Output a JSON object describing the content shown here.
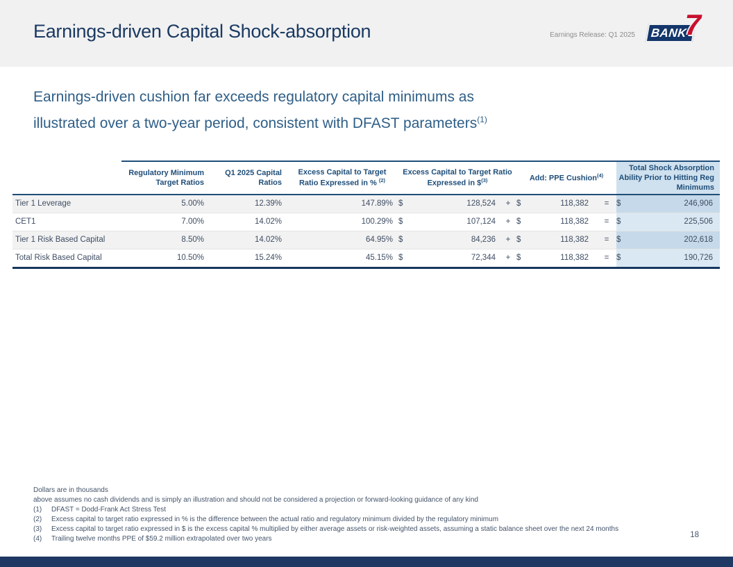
{
  "slide": {
    "title": "Earnings-driven Capital Shock-absorption",
    "release_label": "Earnings Release: Q1 2025",
    "page_number": "18"
  },
  "logo": {
    "word": "BANK",
    "digit": "7"
  },
  "subtitle": {
    "line1": "Earnings-driven cushion far exceeds regulatory capital minimums as",
    "line2": "illustrated over a two-year period, consistent with DFAST parameters",
    "sup": "(1)"
  },
  "table": {
    "headers": {
      "reg_min": "Regulatory Minimum Target Ratios",
      "q1": "Q1 2025 Capital Ratios",
      "excess_pct": "Excess Capital to Target Ratio Expressed in %",
      "excess_pct_sup": "(2)",
      "excess_usd": "Excess Capital to Target Ratio Expressed in $",
      "excess_usd_sup": "(3)",
      "ppe": "Add: PPE Cushion",
      "ppe_sup": "(4)",
      "total": "Total Shock Absorption Ability Prior to Hitting Reg Minimums"
    },
    "symbols": {
      "dollar": "$",
      "plus": "+",
      "equals": "="
    },
    "rows": [
      {
        "label": "Tier 1 Leverage",
        "reg_min": "5.00%",
        "q1": "12.39%",
        "excess_pct": "147.89%",
        "excess_usd": "128,524",
        "ppe": "118,382",
        "total": "246,906"
      },
      {
        "label": "CET1",
        "reg_min": "7.00%",
        "q1": "14.02%",
        "excess_pct": "100.29%",
        "excess_usd": "107,124",
        "ppe": "118,382",
        "total": "225,506"
      },
      {
        "label": "Tier 1 Risk Based Capital",
        "reg_min": "8.50%",
        "q1": "14.02%",
        "excess_pct": "64.95%",
        "excess_usd": "84,236",
        "ppe": "118,382",
        "total": "202,618"
      },
      {
        "label": "Total Risk Based Capital",
        "reg_min": "10.50%",
        "q1": "15.24%",
        "excess_pct": "45.15%",
        "excess_usd": "72,344",
        "ppe": "118,382",
        "total": "190,726"
      }
    ]
  },
  "footnotes": {
    "line1": "Dollars are in thousands",
    "line2": "above assumes no cash dividends and is simply an illustration and should not be considered a projection or forward-looking guidance of any kind",
    "items": [
      {
        "num": "(1)",
        "text": "DFAST = Dodd-Frank Act Stress Test"
      },
      {
        "num": "(2)",
        "text": "Excess capital to target ratio expressed in % is the difference between the actual ratio and regulatory minimum divided by the regulatory minimum"
      },
      {
        "num": "(3)",
        "text": "Excess capital to target ratio expressed in $ is the excess capital % multiplied by either average assets or risk-weighted assets, assuming a static balance sheet over the next 24 months"
      },
      {
        "num": "(4)",
        "text": "Trailing twelve months PPE of $59.2 million extrapolated over two years"
      }
    ]
  },
  "colors": {
    "navy": "#17375E",
    "header_band": "#F1F1F2",
    "table_border": "#1F4E79",
    "row_stripe": "#F2F2F2",
    "highlight_header": "#CFE0EE",
    "highlight_odd": "#C5D9EA",
    "highlight_even": "#DAE8F3",
    "logo_navy": "#14366B",
    "logo_red": "#C8102E",
    "bottom_bar": "#1F3864"
  }
}
